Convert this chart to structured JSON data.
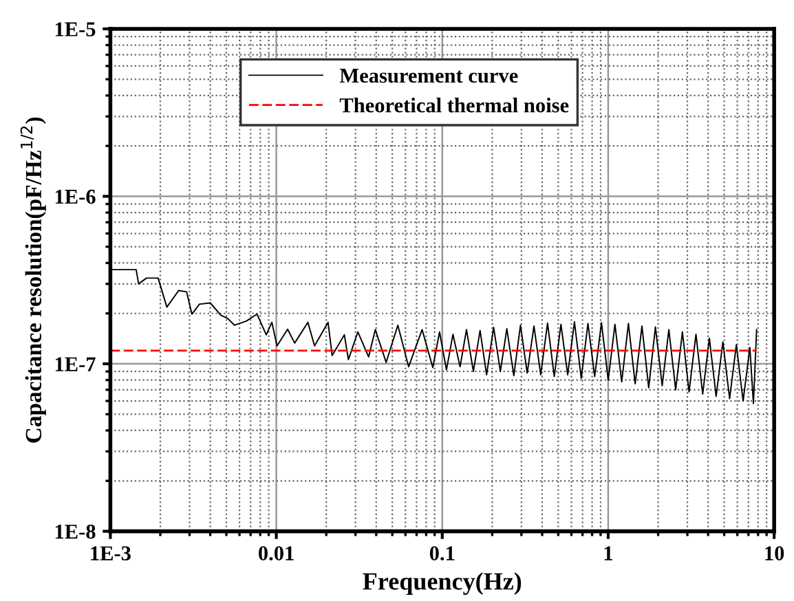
{
  "chart_data": {
    "type": "line",
    "xlabel": "Frequency(Hz)",
    "ylabel": "Capacitance resolution(pF/Hz$^{1/2}$)",
    "log": "xy",
    "grid": true,
    "legend": "top",
    "marker": "none",
    "xlim": [
      0.001,
      10
    ],
    "ylim": [
      1e-08,
      1e-05
    ],
    "xticks": [
      {
        "value": 0.001,
        "label": "1E-3"
      },
      0.01,
      0.1,
      1,
      10
    ],
    "yticks": [
      {
        "value": 1e-08,
        "label": "1E-8"
      },
      {
        "value": 1e-07,
        "label": "1E-7"
      },
      {
        "value": 1e-06,
        "label": "1E-6"
      },
      {
        "value": 1e-05,
        "label": "1E-5"
      }
    ],
    "series": [
      {
        "name": "Measurement curve",
        "color": "#000000",
        "line_style": "solid",
        "x": [
          0.001,
          0.00143,
          0.00148,
          0.00165,
          0.00194,
          0.00219,
          0.00258,
          0.00288,
          0.0031,
          0.00344,
          0.004,
          0.00463,
          0.00508,
          0.0056,
          0.0066,
          0.00765,
          0.0087,
          0.0094,
          0.0101,
          0.0117,
          0.0129,
          0.0155,
          0.017,
          0.0205,
          0.0217,
          0.0257,
          0.0272,
          0.031,
          0.036,
          0.0395,
          0.0459,
          0.054,
          0.0627,
          0.0756,
          0.0877,
          0.0963,
          0.106,
          0.116,
          0.128,
          0.14,
          0.154,
          0.169,
          0.185,
          0.204,
          0.224,
          0.245,
          0.27,
          0.296,
          0.325,
          0.357,
          0.392,
          0.431,
          0.473,
          0.519,
          0.57,
          0.626,
          0.688,
          0.755,
          0.829,
          0.911,
          1.0,
          1.098,
          1.206,
          1.324,
          1.454,
          1.597,
          1.754,
          1.926,
          2.115,
          2.32,
          2.55,
          2.8,
          3.07,
          3.38,
          3.71,
          4.07,
          4.47,
          4.91,
          5.39,
          5.92,
          6.5,
          7.14,
          7.5,
          7.84
        ],
        "values": [
          3.65e-07,
          3.65e-07,
          3e-07,
          3.25e-07,
          3.25e-07,
          2.18e-07,
          2.74e-07,
          2.69e-07,
          1.98e-07,
          2.27e-07,
          2.31e-07,
          1.95e-07,
          1.87e-07,
          1.7e-07,
          1.8e-07,
          1.98e-07,
          1.49e-07,
          1.77e-07,
          1.28e-07,
          1.61e-07,
          1.33e-07,
          1.77e-07,
          1.28e-07,
          1.77e-07,
          1.12e-07,
          1.49e-07,
          1.06e-07,
          1.55e-07,
          1.1e-07,
          1.6e-07,
          1.02e-07,
          1.7e-07,
          9.6e-08,
          1.6e-07,
          9.5e-08,
          1.55e-07,
          9.2e-08,
          1.5e-07,
          9.6e-08,
          1.6e-07,
          9e-08,
          1.58e-07,
          8.6e-08,
          1.65e-07,
          9e-08,
          1.62e-07,
          8.5e-08,
          1.7e-07,
          8.8e-08,
          1.68e-07,
          8.6e-08,
          1.75e-07,
          8.4e-08,
          1.72e-07,
          8.6e-08,
          1.78e-07,
          8.2e-08,
          1.74e-07,
          8.4e-08,
          1.76e-07,
          8e-08,
          1.72e-07,
          7.8e-08,
          1.74e-07,
          7.6e-08,
          1.68e-07,
          7.2e-08,
          1.66e-07,
          7.4e-08,
          1.6e-07,
          7e-08,
          1.55e-07,
          6.8e-08,
          1.5e-07,
          6.6e-08,
          1.42e-07,
          6.4e-08,
          1.35e-07,
          6.2e-08,
          1.3e-07,
          6e-08,
          1.25e-07,
          5.8e-08,
          1.6e-07
        ]
      },
      {
        "name": "Theoretical thermal noise",
        "color": "#ff0000",
        "line_style": "dashed",
        "x": [
          0.001,
          7.84
        ],
        "values": [
          1.2e-07,
          1.2e-07
        ]
      }
    ]
  }
}
